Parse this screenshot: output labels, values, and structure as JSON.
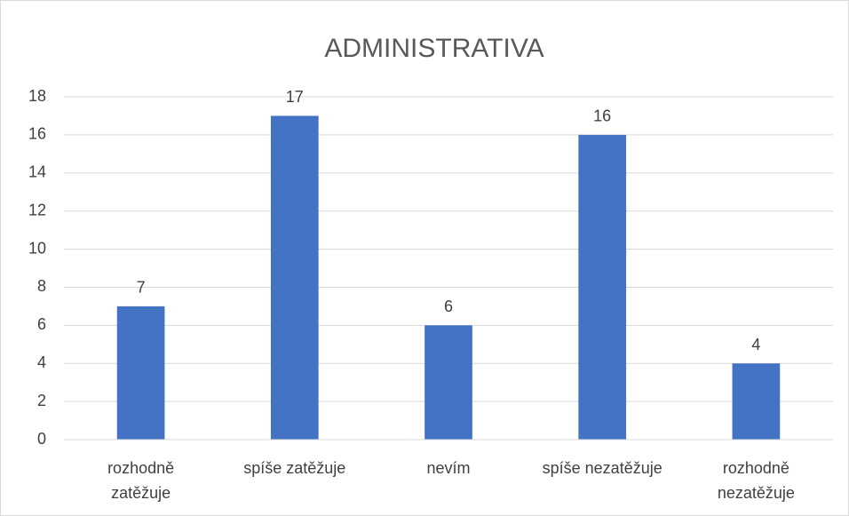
{
  "chart_data": {
    "type": "bar",
    "title": "ADMINISTRATIVA",
    "categories": [
      "rozhodně zatěžuje",
      "spíše zatěžuje",
      "nevím",
      "spíše nezatěžuje",
      "rozhodně nezatěžuje"
    ],
    "values": [
      7,
      17,
      6,
      16,
      4
    ],
    "color": "#4472c4",
    "ylim": [
      0,
      18
    ],
    "yticks": [
      0,
      2,
      4,
      6,
      8,
      10,
      12,
      14,
      16,
      18
    ],
    "grid": true
  }
}
